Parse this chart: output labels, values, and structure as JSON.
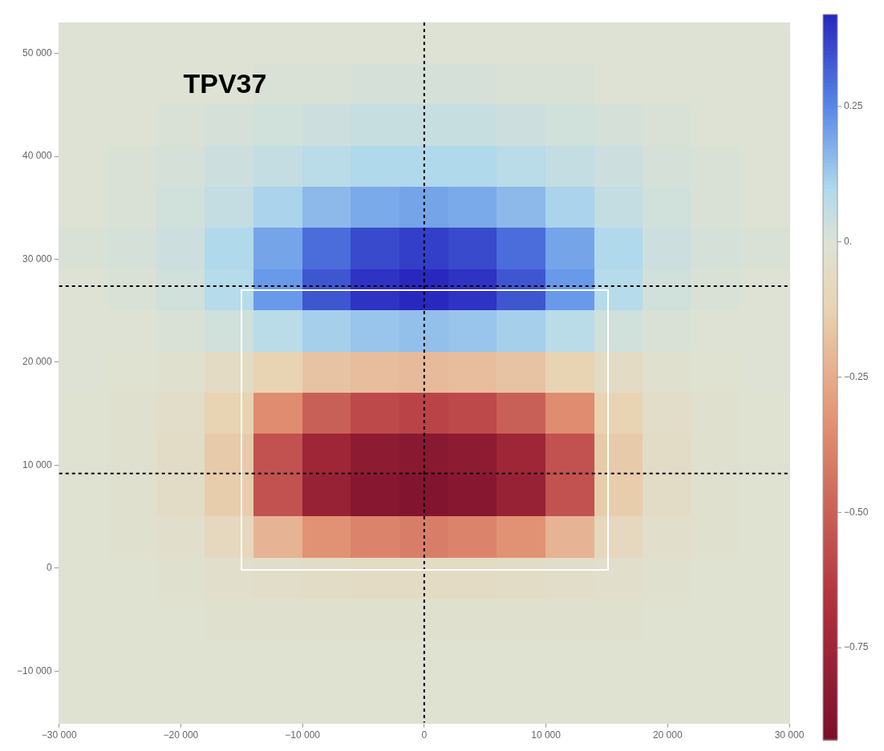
{
  "chart_data": {
    "type": "heatmap",
    "xlim": [
      -30000,
      30000
    ],
    "xticks": [
      {
        "value": -30000,
        "label": "−30 000"
      },
      {
        "value": -20000,
        "label": "−20 000"
      },
      {
        "value": -10000,
        "label": "−10 000"
      },
      0,
      {
        "value": 10000,
        "label": "10 000"
      },
      {
        "value": 20000,
        "label": "20 000"
      },
      {
        "value": 30000,
        "label": "30 000"
      }
    ],
    "ylim": [
      -15000,
      53000
    ],
    "yticks": [
      {
        "value": -10000,
        "label": "−10 000"
      },
      0,
      {
        "value": 10000,
        "label": "10 000"
      },
      {
        "value": 20000,
        "label": "20 000"
      },
      {
        "value": 30000,
        "label": "30 000"
      },
      {
        "value": 40000,
        "label": "40 000"
      },
      {
        "value": 50000,
        "label": "50 000"
      }
    ],
    "clim": [
      -0.92,
      0.42
    ],
    "cticks": [
      {
        "value": 0.25,
        "label": "0.25"
      },
      {
        "value": 0,
        "label": "0."
      },
      {
        "value": -0.25,
        "label": "−0.25"
      },
      {
        "value": -0.5,
        "label": "−0.50"
      },
      {
        "value": -0.75,
        "label": "−0.75"
      }
    ],
    "cells": [
      [
        0,
        0,
        0,
        0,
        0,
        0,
        0,
        0,
        0,
        0,
        0,
        0,
        0,
        0,
        0
      ],
      [
        0,
        0,
        0,
        0,
        0.01,
        0.01,
        0.02,
        0.02,
        0.02,
        0.01,
        0.01,
        0,
        0,
        0,
        0
      ],
      [
        0,
        0,
        0.01,
        0.02,
        0.03,
        0.04,
        0.05,
        0.05,
        0.05,
        0.04,
        0.03,
        0.02,
        0.01,
        0,
        0
      ],
      [
        0,
        0.01,
        0.02,
        0.04,
        0.06,
        0.08,
        0.1,
        0.1,
        0.1,
        0.08,
        0.06,
        0.04,
        0.02,
        0.01,
        0
      ],
      [
        0,
        0.01,
        0.03,
        0.06,
        0.11,
        0.16,
        0.19,
        0.2,
        0.19,
        0.16,
        0.11,
        0.06,
        0.03,
        0.01,
        0
      ],
      [
        0.01,
        0.02,
        0.04,
        0.1,
        0.2,
        0.3,
        0.36,
        0.38,
        0.36,
        0.3,
        0.2,
        0.1,
        0.04,
        0.02,
        0.01
      ],
      [
        0,
        0.01,
        0.03,
        0.09,
        0.22,
        0.34,
        0.4,
        0.42,
        0.4,
        0.34,
        0.22,
        0.09,
        0.03,
        0.01,
        0
      ],
      [
        0,
        0,
        0.01,
        0.03,
        0.08,
        0.12,
        0.14,
        0.15,
        0.14,
        0.12,
        0.08,
        0.03,
        0.01,
        0,
        0
      ],
      [
        0,
        -0.01,
        -0.02,
        -0.06,
        -0.12,
        -0.17,
        -0.19,
        -0.2,
        -0.19,
        -0.17,
        -0.12,
        -0.06,
        -0.02,
        -0.01,
        0
      ],
      [
        -0.01,
        -0.02,
        -0.04,
        -0.12,
        -0.35,
        -0.5,
        -0.58,
        -0.6,
        -0.58,
        -0.5,
        -0.35,
        -0.12,
        -0.04,
        -0.02,
        -0.01
      ],
      [
        -0.01,
        -0.02,
        -0.05,
        -0.15,
        -0.55,
        -0.75,
        -0.83,
        -0.85,
        -0.83,
        -0.75,
        -0.55,
        -0.15,
        -0.05,
        -0.02,
        -0.01
      ],
      [
        -0.01,
        -0.02,
        -0.05,
        -0.14,
        -0.55,
        -0.78,
        -0.86,
        -0.88,
        -0.86,
        -0.78,
        -0.55,
        -0.14,
        -0.05,
        -0.02,
        -0.01
      ],
      [
        -0.01,
        -0.02,
        -0.03,
        -0.08,
        -0.22,
        -0.33,
        -0.38,
        -0.4,
        -0.38,
        -0.33,
        -0.22,
        -0.08,
        -0.03,
        -0.02,
        -0.01
      ],
      [
        -0.01,
        -0.01,
        -0.02,
        -0.03,
        -0.04,
        -0.05,
        -0.06,
        -0.06,
        -0.06,
        -0.05,
        -0.04,
        -0.03,
        -0.02,
        -0.01,
        -0.01
      ],
      [
        -0.01,
        -0.01,
        -0.01,
        -0.02,
        -0.02,
        -0.02,
        -0.02,
        -0.02,
        -0.02,
        -0.02,
        -0.02,
        -0.02,
        -0.01,
        -0.01,
        -0.01
      ],
      [
        -0.01,
        -0.01,
        -0.01,
        -0.01,
        -0.01,
        -0.01,
        -0.01,
        -0.01,
        -0.01,
        -0.01,
        -0.01,
        -0.01,
        -0.01,
        -0.01,
        -0.01
      ],
      [
        -0.01,
        -0.01,
        -0.01,
        -0.01,
        -0.01,
        -0.01,
        -0.01,
        -0.01,
        -0.01,
        -0.01,
        -0.01,
        -0.01,
        -0.01,
        -0.01,
        -0.01
      ]
    ],
    "ref_lines": [
      {
        "axis": "x",
        "value": 0,
        "line_style": "dashed",
        "color": "#000000"
      },
      {
        "axis": "y",
        "value": 27400,
        "line_style": "dashed",
        "color": "#000000"
      },
      {
        "axis": "y",
        "value": 9200,
        "line_style": "dashed",
        "color": "#000000"
      }
    ],
    "annotations": [
      "TPV37"
    ],
    "legend": false
  }
}
